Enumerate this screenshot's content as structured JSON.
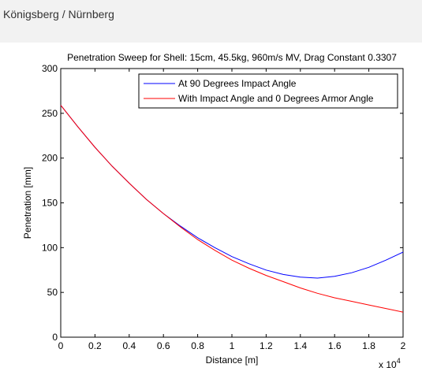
{
  "header": {
    "title": "Königsberg / Nürnberg"
  },
  "chart_data": {
    "type": "line",
    "title": "Penetration Sweep for Shell: 15cm, 45.5kg, 960m/s MV, Drag Constant 0.3307",
    "xlabel": "Distance [m]",
    "ylabel": "Penetration [mm]",
    "x_exponent_label": "x 10",
    "x_exponent_power": "4",
    "xlim": [
      0,
      20000
    ],
    "ylim": [
      0,
      300
    ],
    "x_ticks": [
      0,
      2000,
      4000,
      6000,
      8000,
      10000,
      12000,
      14000,
      16000,
      18000,
      20000
    ],
    "x_tick_labels": [
      "0",
      "0.2",
      "0.4",
      "0.6",
      "0.8",
      "1",
      "1.2",
      "1.4",
      "1.6",
      "1.8",
      "2"
    ],
    "y_ticks": [
      0,
      50,
      100,
      150,
      200,
      250,
      300
    ],
    "y_tick_labels": [
      "0",
      "50",
      "100",
      "150",
      "200",
      "250",
      "300"
    ],
    "grid": false,
    "legend_position": "top-right",
    "series": [
      {
        "name": "At 90 Degrees Impact Angle",
        "color": "#0000ff",
        "x": [
          0,
          1000,
          2000,
          3000,
          4000,
          5000,
          6000,
          7000,
          8000,
          9000,
          10000,
          11000,
          12000,
          13000,
          14000,
          15000,
          16000,
          17000,
          18000,
          19000,
          20000
        ],
        "values": [
          259,
          235,
          212,
          191,
          172,
          154,
          138,
          124,
          111,
          100,
          90,
          82,
          75,
          70,
          67,
          66,
          68,
          72,
          78,
          86,
          95
        ]
      },
      {
        "name": "With Impact Angle and 0 Degrees Armor Angle",
        "color": "#ff0000",
        "x": [
          0,
          1000,
          2000,
          3000,
          4000,
          5000,
          6000,
          7000,
          8000,
          9000,
          10000,
          11000,
          12000,
          13000,
          14000,
          15000,
          16000,
          17000,
          18000,
          19000,
          20000
        ],
        "values": [
          259,
          235,
          212,
          191,
          172,
          154,
          138,
          123,
          109,
          97,
          86,
          77,
          69,
          62,
          55,
          49,
          44,
          40,
          36,
          32,
          28
        ]
      }
    ]
  }
}
